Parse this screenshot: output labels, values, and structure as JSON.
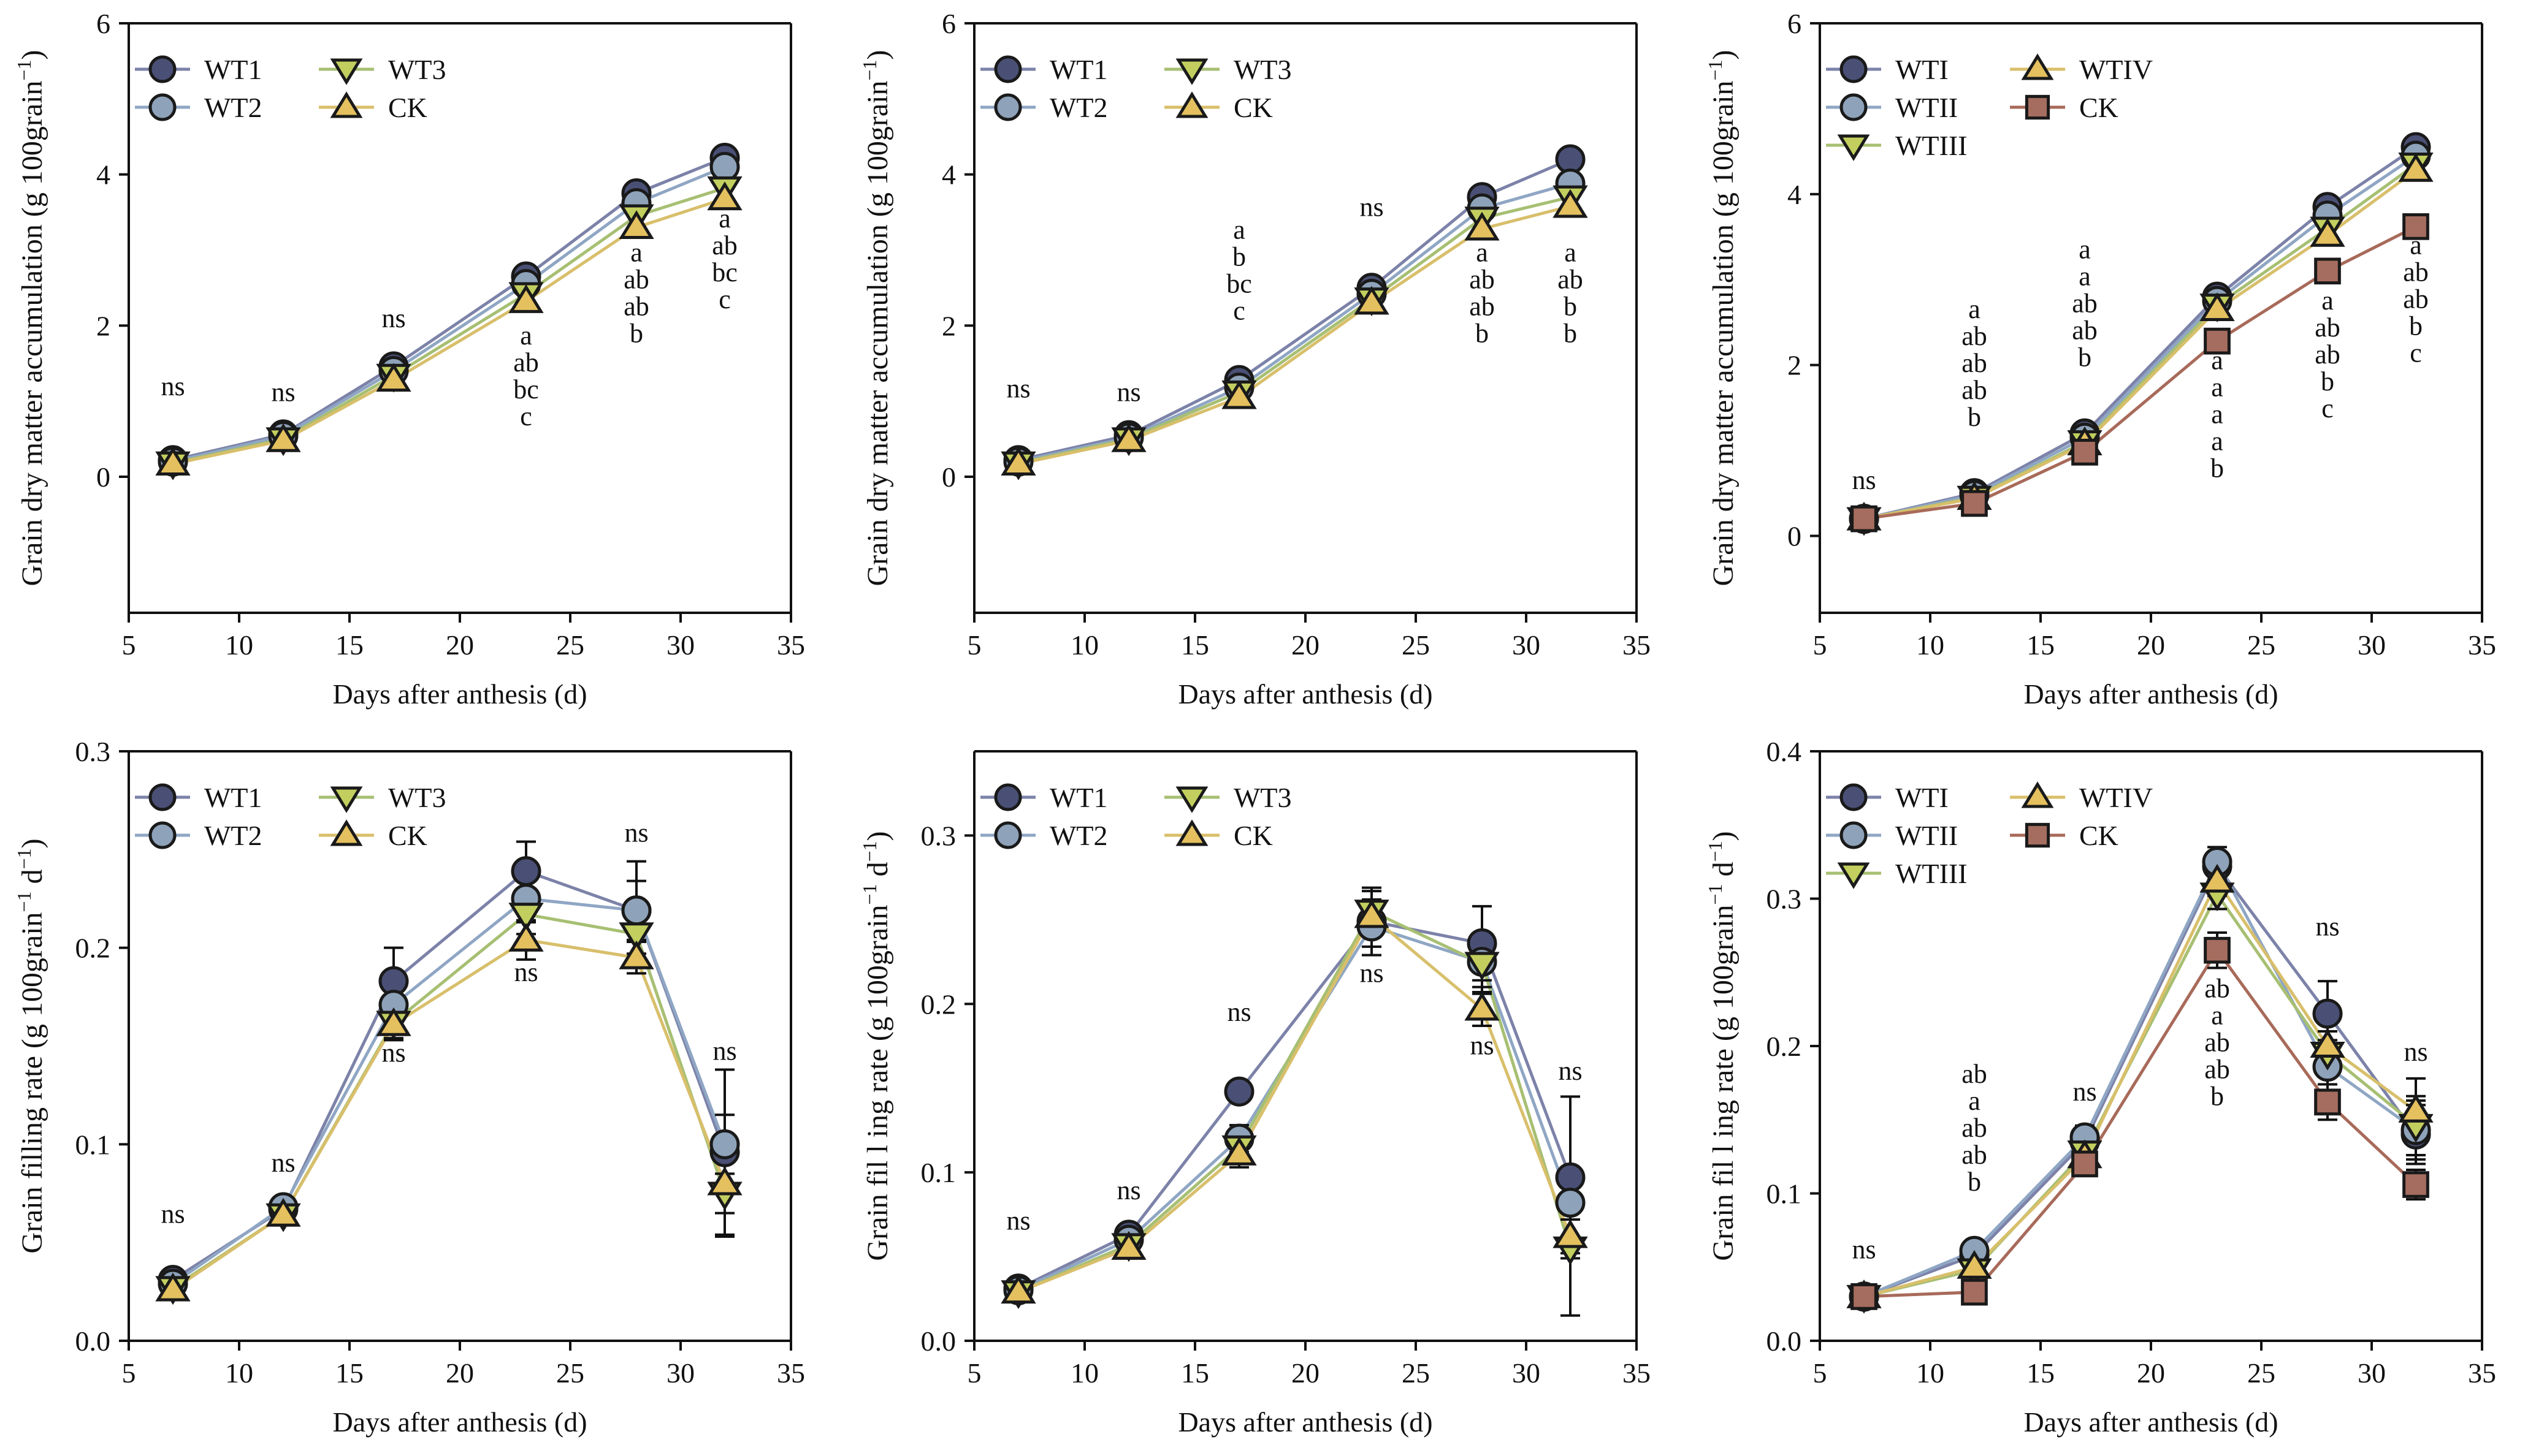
{
  "chart_data": [
    {
      "type": "line",
      "ylabel": "Grain dry matter accumulation (g 100grain",
      "ylabel_sup": "−1",
      "ylabel_close": ")",
      "xlabel": "Days after anthesis (d)",
      "xlim": [
        5,
        35
      ],
      "ylim": [
        -1.8,
        6
      ],
      "xticks": [
        "5",
        "10",
        "15",
        "20",
        "25",
        "30",
        "35"
      ],
      "yticks": [
        "0",
        "2",
        "4",
        "6"
      ],
      "x": [
        7,
        12,
        17,
        23,
        28,
        32
      ],
      "series": [
        {
          "name": "WT1",
          "color": "#7c82a8",
          "fill": "#4a5075",
          "marker": "circle",
          "values": [
            0.22,
            0.56,
            1.46,
            2.65,
            3.75,
            4.22
          ]
        },
        {
          "name": "WT2",
          "color": "#8fa6c4",
          "fill": "#8ea3ba",
          "marker": "circle",
          "values": [
            0.2,
            0.54,
            1.4,
            2.55,
            3.62,
            4.1
          ]
        },
        {
          "name": "WT3",
          "color": "#a7bf72",
          "fill": "#c2cf5f",
          "marker": "triangle-down",
          "values": [
            0.18,
            0.5,
            1.34,
            2.42,
            3.45,
            3.82
          ]
        },
        {
          "name": "CK",
          "color": "#d8bf6b",
          "fill": "#e4c05f",
          "marker": "triangle-up",
          "values": [
            0.17,
            0.48,
            1.28,
            2.32,
            3.3,
            3.68
          ]
        }
      ],
      "annotations": [
        {
          "x": 7,
          "y": 1.08,
          "lines": [
            "ns"
          ]
        },
        {
          "x": 12,
          "y": 1.0,
          "lines": [
            "ns"
          ]
        },
        {
          "x": 17,
          "y": 1.98,
          "lines": [
            "ns"
          ]
        },
        {
          "x": 23,
          "y": 1.75,
          "lines": [
            "a",
            "ab",
            "bc",
            "c"
          ]
        },
        {
          "x": 28,
          "y": 2.85,
          "lines": [
            "a",
            "ab",
            "ab",
            "b"
          ]
        },
        {
          "x": 32,
          "y": 3.3,
          "lines": [
            "a",
            "ab",
            "bc",
            "c"
          ]
        }
      ]
    },
    {
      "type": "line",
      "ylabel": "Grain dry matter accumulation (g 100grain",
      "ylabel_sup": "−1",
      "ylabel_close": ")",
      "xlabel": "Days after anthesis (d)",
      "xlim": [
        5,
        35
      ],
      "ylim": [
        -1.8,
        6
      ],
      "xticks": [
        "5",
        "10",
        "15",
        "20",
        "25",
        "30",
        "35"
      ],
      "yticks": [
        "0",
        "2",
        "4",
        "6"
      ],
      "x": [
        7,
        12,
        17,
        23,
        28,
        32
      ],
      "series": [
        {
          "name": "WT1",
          "color": "#7c82a8",
          "fill": "#4a5075",
          "marker": "circle",
          "values": [
            0.22,
            0.55,
            1.28,
            2.5,
            3.7,
            4.2
          ]
        },
        {
          "name": "WT2",
          "color": "#8fa6c4",
          "fill": "#8ea3ba",
          "marker": "circle",
          "values": [
            0.2,
            0.52,
            1.18,
            2.42,
            3.55,
            3.88
          ]
        },
        {
          "name": "WT3",
          "color": "#a7bf72",
          "fill": "#c2cf5f",
          "marker": "triangle-down",
          "values": [
            0.18,
            0.5,
            1.12,
            2.35,
            3.42,
            3.7
          ]
        },
        {
          "name": "CK",
          "color": "#d8bf6b",
          "fill": "#e4c05f",
          "marker": "triangle-up",
          "values": [
            0.17,
            0.48,
            1.05,
            2.3,
            3.28,
            3.58
          ]
        }
      ],
      "annotations": [
        {
          "x": 7,
          "y": 1.05,
          "lines": [
            "ns"
          ]
        },
        {
          "x": 12,
          "y": 1.0,
          "lines": [
            "ns"
          ]
        },
        {
          "x": 17,
          "y": 3.15,
          "lines": [
            "a",
            "b",
            "bc",
            "c"
          ]
        },
        {
          "x": 23,
          "y": 3.45,
          "lines": [
            "ns"
          ]
        },
        {
          "x": 28,
          "y": 2.85,
          "lines": [
            "a",
            "ab",
            "ab",
            "b"
          ]
        },
        {
          "x": 32,
          "y": 2.85,
          "lines": [
            "a",
            "ab",
            "b",
            "b"
          ]
        }
      ]
    },
    {
      "type": "line",
      "ylabel": "Grain dry matter accumulation (g 100grain",
      "ylabel_sup": "−1",
      "ylabel_close": ")",
      "xlabel": "Days after anthesis (d)",
      "xlim": [
        5,
        35
      ],
      "ylim": [
        -0.9,
        6
      ],
      "xticks": [
        "5",
        "10",
        "15",
        "20",
        "25",
        "30",
        "35"
      ],
      "yticks": [
        "0",
        "2",
        "4",
        "6"
      ],
      "x": [
        7,
        12,
        17,
        23,
        28,
        32
      ],
      "series": [
        {
          "name": "WTI",
          "color": "#7c82a8",
          "fill": "#4a5075",
          "marker": "circle",
          "values": [
            0.2,
            0.5,
            1.2,
            2.8,
            3.85,
            4.55
          ]
        },
        {
          "name": "WTII",
          "color": "#8fa6c4",
          "fill": "#8ea3ba",
          "marker": "circle",
          "values": [
            0.2,
            0.48,
            1.15,
            2.75,
            3.75,
            4.45
          ]
        },
        {
          "name": "WTIII",
          "color": "#a7bf72",
          "fill": "#c2cf5f",
          "marker": "triangle-down",
          "values": [
            0.2,
            0.45,
            1.1,
            2.7,
            3.6,
            4.35
          ]
        },
        {
          "name": "WTIV",
          "color": "#d8bf6b",
          "fill": "#e4c05f",
          "marker": "triangle-up",
          "values": [
            0.2,
            0.44,
            1.08,
            2.65,
            3.52,
            4.28
          ]
        },
        {
          "name": "CK",
          "color": "#a86a5a",
          "fill": "#a56d5f",
          "marker": "square",
          "values": [
            0.2,
            0.38,
            0.98,
            2.28,
            3.1,
            3.62
          ]
        }
      ],
      "annotations": [
        {
          "x": 7,
          "y": 0.55,
          "lines": [
            "ns"
          ]
        },
        {
          "x": 12,
          "y": 2.55,
          "lines": [
            "a",
            "ab",
            "ab",
            "ab",
            "b"
          ]
        },
        {
          "x": 17,
          "y": 3.25,
          "lines": [
            "a",
            "a",
            "ab",
            "ab",
            "b"
          ]
        },
        {
          "x": 23,
          "y": 1.95,
          "lines": [
            "a",
            "a",
            "a",
            "a",
            "b"
          ]
        },
        {
          "x": 28,
          "y": 2.65,
          "lines": [
            "a",
            "ab",
            "ab",
            "b",
            "c"
          ]
        },
        {
          "x": 32,
          "y": 3.3,
          "lines": [
            "a",
            "ab",
            "ab",
            "b",
            "c"
          ]
        }
      ]
    },
    {
      "type": "line",
      "ylabel": "Grain filling rate (g 100grain",
      "ylabel_sup": "−1",
      "ylabel_close": " d",
      "ylabel_sup2": "−1",
      "ylabel_close2": ")",
      "xlabel": "Days after anthesis (d)",
      "xlim": [
        5,
        35
      ],
      "ylim": [
        0,
        0.3
      ],
      "xticks": [
        "5",
        "10",
        "15",
        "20",
        "25",
        "30",
        "35"
      ],
      "yticks": [
        "0.0",
        "0.1",
        "0.2",
        "0.3"
      ],
      "x": [
        7,
        12,
        17,
        23,
        28,
        32
      ],
      "series": [
        {
          "name": "WT1",
          "color": "#7c82a8",
          "fill": "#4a5075",
          "marker": "circle",
          "values": [
            0.031,
            0.067,
            0.183,
            0.239,
            0.219,
            0.096
          ],
          "errors": [
            0.003,
            0.003,
            0.017,
            0.015,
            0.025,
            0.042
          ]
        },
        {
          "name": "WT2",
          "color": "#8fa6c4",
          "fill": "#8ea3ba",
          "marker": "circle",
          "values": [
            0.029,
            0.068,
            0.171,
            0.225,
            0.219,
            0.1
          ],
          "errors": [
            0.003,
            0.003,
            0.012,
            0.012,
            0.015,
            0.015
          ]
        },
        {
          "name": "WT3",
          "color": "#a7bf72",
          "fill": "#c2cf5f",
          "marker": "triangle-down",
          "values": [
            0.027,
            0.064,
            0.162,
            0.217,
            0.207,
            0.075
          ],
          "errors": [
            0.003,
            0.003,
            0.008,
            0.01,
            0.01,
            0.022
          ]
        },
        {
          "name": "CK",
          "color": "#d8bf6b",
          "fill": "#e4c05f",
          "marker": "triangle-up",
          "values": [
            0.026,
            0.064,
            0.161,
            0.204,
            0.195,
            0.08
          ],
          "errors": [
            0.003,
            0.003,
            0.008,
            0.01,
            0.008,
            0.015
          ]
        }
      ],
      "annotations": [
        {
          "x": 7,
          "y": 0.06,
          "lines": [
            "ns"
          ]
        },
        {
          "x": 12,
          "y": 0.086,
          "lines": [
            "ns"
          ]
        },
        {
          "x": 17,
          "y": 0.142,
          "lines": [
            "ns"
          ]
        },
        {
          "x": 23,
          "y": 0.183,
          "lines": [
            "ns"
          ]
        },
        {
          "x": 28,
          "y": 0.254,
          "lines": [
            "ns"
          ]
        },
        {
          "x": 32,
          "y": 0.143,
          "lines": [
            "ns"
          ]
        }
      ]
    },
    {
      "type": "line",
      "ylabel": "Grain fil l ing rate (g 100grain",
      "ylabel_sup": "−1",
      "ylabel_close": " d",
      "ylabel_sup2": "−1",
      "ylabel_close2": ")",
      "xlabel": "Days after anthesis (d)",
      "xlim": [
        5,
        35
      ],
      "ylim": [
        0,
        0.35
      ],
      "xticks": [
        "5",
        "10",
        "15",
        "20",
        "25",
        "30",
        "35"
      ],
      "yticks": [
        "0.0",
        "0.1",
        "0.2",
        "0.3"
      ],
      "x": [
        7,
        12,
        17,
        23,
        28,
        32
      ],
      "series": [
        {
          "name": "WT1",
          "color": "#7c82a8",
          "fill": "#4a5075",
          "marker": "circle",
          "values": [
            0.031,
            0.063,
            0.148,
            0.249,
            0.236,
            0.097
          ],
          "errors": [
            0.003,
            0.005,
            0.006,
            0.02,
            0.022,
            0.048
          ]
        },
        {
          "name": "WT2",
          "color": "#8fa6c4",
          "fill": "#8ea3ba",
          "marker": "circle",
          "values": [
            0.03,
            0.06,
            0.12,
            0.246,
            0.225,
            0.082
          ],
          "errors": [
            0.003,
            0.005,
            0.008,
            0.012,
            0.015,
            0.02
          ]
        },
        {
          "name": "WT3",
          "color": "#a7bf72",
          "fill": "#c2cf5f",
          "marker": "triangle-down",
          "values": [
            0.029,
            0.057,
            0.115,
            0.255,
            0.224,
            0.055
          ],
          "errors": [
            0.003,
            0.005,
            0.008,
            0.012,
            0.018,
            0.04
          ]
        },
        {
          "name": "CK",
          "color": "#d8bf6b",
          "fill": "#e4c05f",
          "marker": "triangle-up",
          "values": [
            0.029,
            0.055,
            0.111,
            0.252,
            0.197,
            0.062
          ],
          "errors": [
            0.003,
            0.005,
            0.008,
            0.01,
            0.01,
            0.01
          ]
        }
      ],
      "annotations": [
        {
          "x": 7,
          "y": 0.066,
          "lines": [
            "ns"
          ]
        },
        {
          "x": 12,
          "y": 0.084,
          "lines": [
            "ns"
          ]
        },
        {
          "x": 17,
          "y": 0.19,
          "lines": [
            "ns"
          ]
        },
        {
          "x": 23,
          "y": 0.213,
          "lines": [
            "ns"
          ]
        },
        {
          "x": 28,
          "y": 0.17,
          "lines": [
            "ns"
          ]
        },
        {
          "x": 32,
          "y": 0.155,
          "lines": [
            "ns"
          ]
        }
      ]
    },
    {
      "type": "line",
      "ylabel": "Grain fil l ing rate (g 100grain",
      "ylabel_sup": "−1",
      "ylabel_close": " d",
      "ylabel_sup2": "−1",
      "ylabel_close2": ")",
      "xlabel": "Days after anthesis (d)",
      "xlim": [
        5,
        35
      ],
      "ylim": [
        0,
        0.4
      ],
      "xticks": [
        "5",
        "10",
        "15",
        "20",
        "25",
        "30",
        "35"
      ],
      "yticks": [
        "0.0",
        "0.1",
        "0.2",
        "0.3",
        "0.4"
      ],
      "x": [
        7,
        12,
        17,
        23,
        28,
        32
      ],
      "series": [
        {
          "name": "WTI",
          "color": "#7c82a8",
          "fill": "#4a5075",
          "marker": "circle",
          "values": [
            0.03,
            0.058,
            0.135,
            0.322,
            0.222,
            0.14
          ],
          "errors": [
            0.003,
            0.004,
            0.008,
            0.01,
            0.022,
            0.02
          ]
        },
        {
          "name": "WTII",
          "color": "#8fa6c4",
          "fill": "#8ea3ba",
          "marker": "circle",
          "values": [
            0.03,
            0.061,
            0.138,
            0.325,
            0.186,
            0.143
          ],
          "errors": [
            0.003,
            0.004,
            0.008,
            0.01,
            0.018,
            0.02
          ]
        },
        {
          "name": "WTIII",
          "color": "#a7bf72",
          "fill": "#c2cf5f",
          "marker": "triangle-down",
          "values": [
            0.03,
            0.048,
            0.128,
            0.303,
            0.195,
            0.146
          ],
          "errors": [
            0.003,
            0.004,
            0.008,
            0.01,
            0.015,
            0.02
          ]
        },
        {
          "name": "WTIV",
          "color": "#d8bf6b",
          "fill": "#e4c05f",
          "marker": "triangle-up",
          "values": [
            0.03,
            0.05,
            0.125,
            0.312,
            0.2,
            0.156
          ],
          "errors": [
            0.003,
            0.004,
            0.008,
            0.01,
            0.015,
            0.022
          ]
        },
        {
          "name": "CK",
          "color": "#a86a5a",
          "fill": "#a56d5f",
          "marker": "square",
          "values": [
            0.03,
            0.033,
            0.12,
            0.265,
            0.162,
            0.106
          ],
          "errors": [
            0.003,
            0.003,
            0.008,
            0.012,
            0.012,
            0.01
          ]
        }
      ],
      "annotations": [
        {
          "x": 7,
          "y": 0.056,
          "lines": [
            "ns"
          ]
        },
        {
          "x": 12,
          "y": 0.175,
          "lines": [
            "ab",
            "a",
            "ab",
            "ab",
            "b"
          ]
        },
        {
          "x": 17,
          "y": 0.163,
          "lines": [
            "ns"
          ]
        },
        {
          "x": 23,
          "y": 0.233,
          "lines": [
            "ab",
            "a",
            "ab",
            "ab",
            "b"
          ]
        },
        {
          "x": 28,
          "y": 0.275,
          "lines": [
            "ns"
          ]
        },
        {
          "x": 32,
          "y": 0.19,
          "lines": [
            "ns"
          ]
        }
      ]
    }
  ]
}
